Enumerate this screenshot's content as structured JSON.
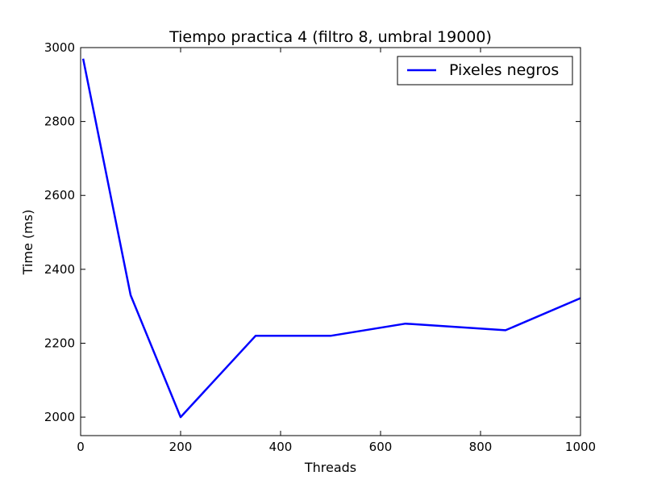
{
  "chart_data": {
    "type": "line",
    "title": "Tiempo practica 4 (filtro 8, umbral 19000)",
    "xlabel": "Threads",
    "ylabel": "Time (ms)",
    "xlim": [
      0,
      1000
    ],
    "ylim": [
      1950,
      3000
    ],
    "xticks": [
      0,
      200,
      400,
      600,
      800,
      1000
    ],
    "yticks": [
      2000,
      2200,
      2400,
      2600,
      2800,
      3000
    ],
    "grid": false,
    "legend_position": "top-right",
    "series": [
      {
        "name": "Pixeles negros",
        "color": "#0000ff",
        "x": [
          5,
          100,
          200,
          350,
          500,
          650,
          850,
          1000
        ],
        "y": [
          2970,
          2330,
          2000,
          2220,
          2220,
          2253,
          2235,
          2322
        ]
      }
    ]
  }
}
